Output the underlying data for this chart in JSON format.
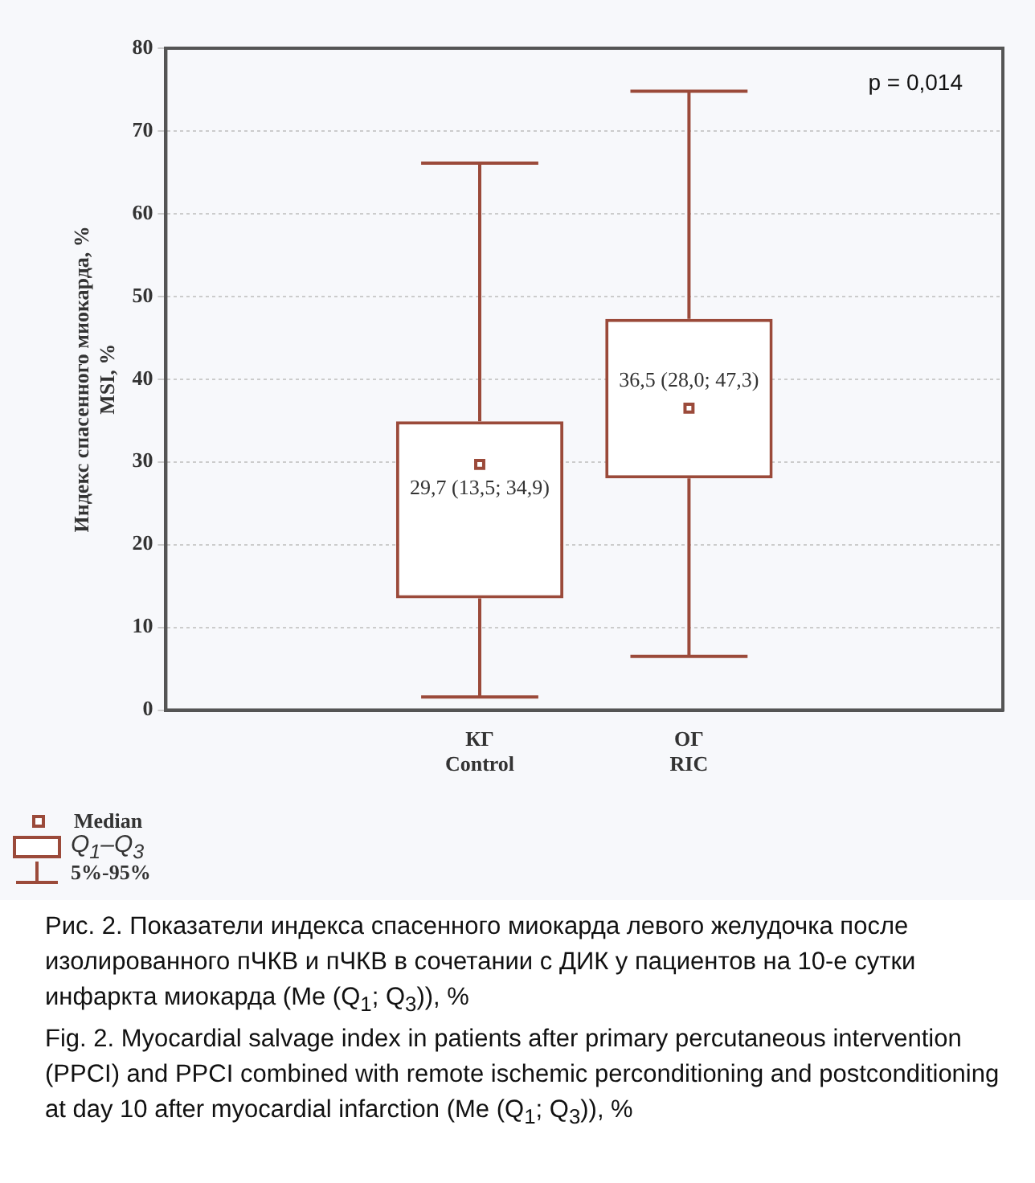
{
  "chart_data": {
    "type": "box",
    "ylabel": "Индекс спасенного миокарда, %\nMSI, %",
    "categories": [
      null,
      "КГ\nControl",
      "ОГ\nRIC",
      null
    ],
    "boxes": [
      null,
      {
        "low": 1.6,
        "q1": 13.5,
        "median": 29.7,
        "q3": 34.9,
        "high": 66.1
      },
      {
        "low": 6.5,
        "q1": 28.0,
        "median": 36.5,
        "q3": 47.3,
        "high": 74.8
      },
      null
    ],
    "value_labels": [
      null,
      "29,7 (13,5; 34,9)",
      "36,5 (28,0; 47,3)",
      null
    ],
    "color": "#9b4a3a",
    "marker": "square",
    "ylim": [
      0,
      80
    ],
    "yticks": [
      0,
      10,
      20,
      30,
      40,
      50,
      60,
      70,
      80
    ],
    "grid": "y",
    "annotations": [
      "p = 0,014",
      "Median",
      "Q$_{1}$–Q$_{3}$",
      "5%-95%",
      "Рис. 2. Показатели индекса спасенного миокарда левого желудочка после изолированного пЧКВ и пЧКВ в сочетании с ДИК у пациентов на 10-е сутки инфаркта миокарда (Me (Q$_{1}$; Q$_{3}$)), %",
      "Fig. 2. Myocardial salvage index in patients after primary percutaneous intervention (PPCI) and PPCI combined with remote ischemic perconditioning and postconditioning at day 10 after myocardial infarction (Me (Q$_{1}$; Q$_{3}$)), %"
    ]
  }
}
